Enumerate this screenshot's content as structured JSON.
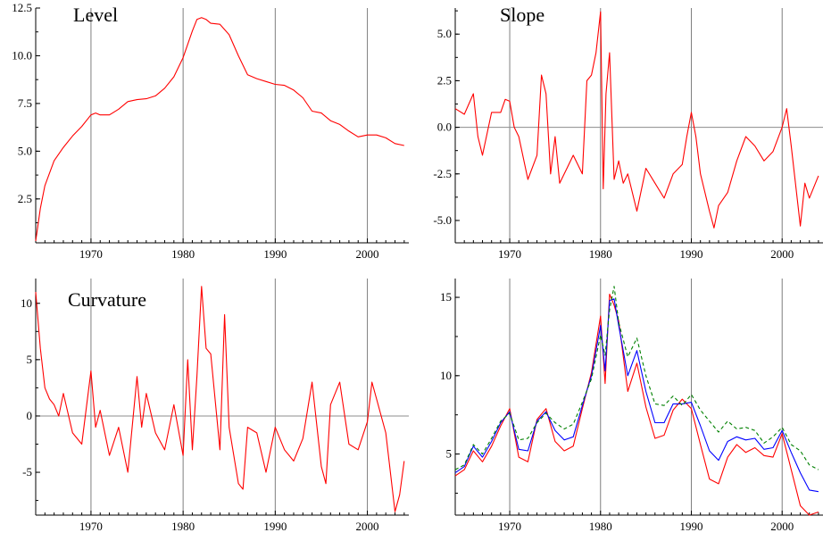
{
  "chart_data": [
    {
      "type": "line",
      "title": "Level",
      "xlabel": "",
      "ylabel": "",
      "xlim": [
        1964,
        2004.5
      ],
      "ylim": [
        0.2,
        12.5
      ],
      "xticks": [
        "1970",
        "1980",
        "1990",
        "2000"
      ],
      "yticks": [
        "2.5",
        "5.0",
        "7.5",
        "10.0",
        "12.5"
      ],
      "zero_line": false,
      "grid": "vertical",
      "series": [
        {
          "color": "#ff0000",
          "x": [
            1964,
            1964.5,
            1965,
            1966,
            1967,
            1968,
            1969,
            1970,
            1970.5,
            1971,
            1972,
            1973,
            1974,
            1975,
            1976,
            1977,
            1978,
            1979,
            1980,
            1981,
            1981.5,
            1982,
            1982.5,
            1983,
            1984,
            1985,
            1986,
            1987,
            1988,
            1989,
            1990,
            1991,
            1992,
            1993,
            1994,
            1995,
            1996,
            1997,
            1998,
            1999,
            2000,
            2001,
            2002,
            2003,
            2004
          ],
          "y": [
            0.3,
            2.0,
            3.2,
            4.5,
            5.2,
            5.8,
            6.3,
            6.9,
            7.0,
            6.9,
            6.9,
            7.2,
            7.6,
            7.7,
            7.75,
            7.9,
            8.3,
            8.9,
            9.9,
            11.3,
            11.9,
            12.0,
            11.9,
            11.7,
            11.65,
            11.1,
            10.0,
            9.0,
            8.8,
            8.65,
            8.5,
            8.45,
            8.2,
            7.8,
            7.1,
            7.0,
            6.6,
            6.4,
            6.05,
            5.75,
            5.85,
            5.85,
            5.7,
            5.4,
            5.3
          ]
        }
      ]
    },
    {
      "type": "line",
      "title": "Slope",
      "xlabel": "",
      "ylabel": "",
      "xlim": [
        1964,
        2004.5
      ],
      "ylim": [
        -6.2,
        6.4
      ],
      "xticks": [
        "1970",
        "1980",
        "1990",
        "2000"
      ],
      "yticks": [
        "-5.0",
        "-2.5",
        "0.0",
        "2.5",
        "5.0"
      ],
      "zero_line": true,
      "grid": "vertical",
      "series": [
        {
          "color": "#ff0000",
          "x": [
            1964,
            1965,
            1966,
            1966.5,
            1967,
            1968,
            1969,
            1969.5,
            1970,
            1970.5,
            1971,
            1972,
            1973,
            1973.5,
            1974,
            1974.5,
            1975,
            1975.5,
            1976,
            1977,
            1978,
            1978.5,
            1979,
            1979.5,
            1980,
            1980.3,
            1980.6,
            1981,
            1981.5,
            1982,
            1982.5,
            1983,
            1984,
            1985,
            1986,
            1987,
            1988,
            1989,
            1989.5,
            1990,
            1990.5,
            1991,
            1992,
            1992.5,
            1993,
            1994,
            1995,
            1996,
            1997,
            1998,
            1999,
            2000,
            2000.5,
            2001,
            2002,
            2002.5,
            2003,
            2004
          ],
          "y": [
            1.0,
            0.7,
            1.8,
            -0.5,
            -1.5,
            0.8,
            0.8,
            1.5,
            1.4,
            0.0,
            -0.5,
            -2.8,
            -1.5,
            2.8,
            1.8,
            -2.5,
            -0.5,
            -3.0,
            -2.5,
            -1.5,
            -2.5,
            2.5,
            2.8,
            4.0,
            6.2,
            -3.3,
            1.8,
            4.0,
            -2.8,
            -1.8,
            -3.0,
            -2.5,
            -4.5,
            -2.2,
            -3.0,
            -3.8,
            -2.5,
            -2.0,
            -0.5,
            0.8,
            -0.5,
            -2.5,
            -4.5,
            -5.4,
            -4.2,
            -3.5,
            -1.8,
            -0.5,
            -1.0,
            -1.8,
            -1.3,
            0.0,
            1.0,
            -1.0,
            -5.3,
            -3.0,
            -3.8,
            -2.6
          ]
        }
      ]
    },
    {
      "type": "line",
      "title": "Curvature",
      "xlabel": "",
      "ylabel": "",
      "xlim": [
        1964,
        2004.5
      ],
      "ylim": [
        -8.8,
        12.2
      ],
      "xticks": [
        "1970",
        "1980",
        "1990",
        "2000"
      ],
      "yticks": [
        "-5",
        "0",
        "5",
        "10"
      ],
      "zero_line": true,
      "grid": "vertical",
      "series": [
        {
          "color": "#ff0000",
          "x": [
            1964,
            1964.5,
            1965,
            1965.5,
            1966,
            1966.5,
            1967,
            1968,
            1969,
            1970,
            1970.5,
            1971,
            1972,
            1973,
            1974,
            1975,
            1975.5,
            1976,
            1977,
            1978,
            1979,
            1980,
            1980.5,
            1981,
            1981.5,
            1982,
            1982.5,
            1983,
            1984,
            1984.5,
            1985,
            1986,
            1986.5,
            1987,
            1988,
            1989,
            1990,
            1991,
            1992,
            1993,
            1994,
            1995,
            1995.5,
            1996,
            1997,
            1998,
            1999,
            2000,
            2000.5,
            2001,
            2002,
            2003,
            2003.5,
            2004
          ],
          "y": [
            11.0,
            6.0,
            2.5,
            1.5,
            1.0,
            0.0,
            2.0,
            -1.5,
            -2.5,
            4.0,
            -1.0,
            0.5,
            -3.5,
            -1.0,
            -5.0,
            3.5,
            -1.0,
            2.0,
            -1.5,
            -3.0,
            1.0,
            -3.5,
            5.0,
            -3.0,
            3.5,
            11.5,
            6.0,
            5.5,
            -3.0,
            9.0,
            -1.0,
            -6.0,
            -6.5,
            -1.0,
            -1.5,
            -5.0,
            -1.0,
            -3.0,
            -4.0,
            -2.0,
            3.0,
            -4.5,
            -6.0,
            1.0,
            3.0,
            -2.5,
            -3.0,
            -0.5,
            3.0,
            1.5,
            -1.5,
            -8.5,
            -7.0,
            -4.0
          ]
        }
      ]
    },
    {
      "type": "line",
      "title": "",
      "xlabel": "",
      "ylabel": "",
      "xlim": [
        1964,
        2004.5
      ],
      "ylim": [
        1.1,
        16.2
      ],
      "xticks": [
        "1970",
        "1980",
        "1990",
        "2000"
      ],
      "yticks": [
        "5",
        "10",
        "15"
      ],
      "zero_line": false,
      "grid": "vertical",
      "series": [
        {
          "color": "#ff0000",
          "x": [
            1964,
            1965,
            1966,
            1967,
            1968,
            1969,
            1970,
            1971,
            1972,
            1973,
            1974,
            1975,
            1976,
            1977,
            1978,
            1979,
            1980,
            1980.5,
            1981,
            1981.5,
            1982,
            1983,
            1984,
            1985,
            1986,
            1987,
            1988,
            1989,
            1990,
            1991,
            1992,
            1993,
            1994,
            1995,
            1996,
            1997,
            1998,
            1999,
            2000,
            2001,
            2002,
            2003,
            2004
          ],
          "y": [
            3.6,
            4.0,
            5.2,
            4.5,
            5.5,
            6.8,
            7.9,
            4.8,
            4.5,
            7.2,
            7.9,
            5.8,
            5.2,
            5.5,
            7.9,
            10.2,
            13.8,
            9.5,
            15.2,
            14.5,
            13.5,
            9.0,
            10.8,
            8.0,
            6.0,
            6.2,
            7.8,
            8.5,
            7.9,
            5.6,
            3.4,
            3.1,
            4.8,
            5.6,
            5.1,
            5.4,
            4.9,
            4.8,
            6.3,
            4.0,
            1.7,
            1.1,
            1.3
          ]
        },
        {
          "color": "#0000ff",
          "x": [
            1964,
            1965,
            1966,
            1967,
            1968,
            1969,
            1970,
            1971,
            1972,
            1973,
            1974,
            1975,
            1976,
            1977,
            1978,
            1979,
            1980,
            1980.5,
            1981,
            1981.5,
            1982,
            1983,
            1984,
            1985,
            1986,
            1987,
            1988,
            1989,
            1990,
            1991,
            1992,
            1993,
            1994,
            1995,
            1996,
            1997,
            1998,
            1999,
            2000,
            2001,
            2002,
            2003,
            2004
          ],
          "y": [
            3.8,
            4.2,
            5.5,
            4.8,
            5.8,
            7.0,
            7.7,
            5.3,
            5.2,
            7.1,
            7.7,
            6.5,
            5.9,
            6.1,
            8.1,
            10.0,
            13.2,
            10.3,
            14.8,
            14.9,
            13.2,
            10.0,
            11.6,
            9.0,
            7.0,
            7.0,
            8.2,
            8.2,
            8.3,
            6.8,
            5.2,
            4.6,
            5.8,
            6.1,
            5.9,
            6.0,
            5.3,
            5.4,
            6.5,
            5.1,
            3.8,
            2.7,
            2.6
          ]
        },
        {
          "color": "#008000",
          "dash": "4,3",
          "x": [
            1964,
            1965,
            1966,
            1967,
            1968,
            1969,
            1970,
            1971,
            1972,
            1973,
            1974,
            1975,
            1976,
            1977,
            1978,
            1979,
            1980,
            1980.5,
            1981,
            1981.5,
            1982,
            1983,
            1984,
            1985,
            1986,
            1987,
            1988,
            1989,
            1990,
            1991,
            1992,
            1993,
            1994,
            1995,
            1996,
            1997,
            1998,
            1999,
            2000,
            2001,
            2002,
            2003,
            2004
          ],
          "y": [
            4.0,
            4.3,
            5.6,
            5.0,
            6.0,
            7.1,
            7.6,
            5.9,
            6.0,
            7.0,
            7.6,
            7.0,
            6.6,
            6.9,
            8.3,
            9.8,
            12.6,
            11.3,
            14.2,
            15.7,
            13.4,
            11.2,
            12.4,
            10.0,
            8.2,
            8.1,
            8.7,
            8.1,
            8.8,
            7.8,
            7.1,
            6.4,
            7.1,
            6.6,
            6.7,
            6.5,
            5.7,
            6.1,
            6.7,
            5.6,
            5.2,
            4.3,
            4.0
          ]
        }
      ]
    }
  ]
}
